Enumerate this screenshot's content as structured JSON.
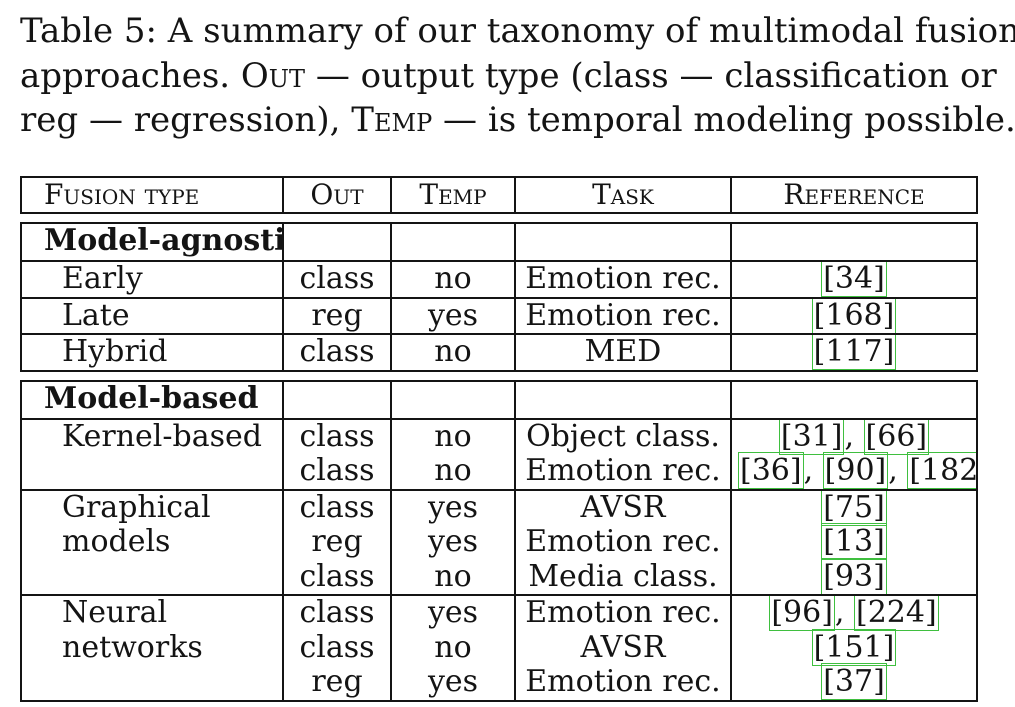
{
  "caption": {
    "label": "Table 5:",
    "text1": "A summary of our taxonomy of multimodal fusion",
    "text2a": "approaches.",
    "out_label": "Out",
    "text2b": "— output type (class — classification or",
    "text3a": "reg — regression),",
    "temp_label": "Temp",
    "text3b": "— is temporal modeling possible."
  },
  "table": {
    "headers": [
      "Fusion type",
      "Out",
      "Temp",
      "Task",
      "Reference"
    ],
    "groups": [
      {
        "name": "Model-agnostic",
        "rows": [
          {
            "type": "Early",
            "entries": [
              {
                "out": "class",
                "temp": "no",
                "task": "Emotion rec.",
                "refs": [
                  "34"
                ]
              }
            ]
          },
          {
            "type": "Late",
            "entries": [
              {
                "out": "reg",
                "temp": "yes",
                "task": "Emotion rec.",
                "refs": [
                  "168"
                ]
              }
            ]
          },
          {
            "type": "Hybrid",
            "entries": [
              {
                "out": "class",
                "temp": "no",
                "task": "MED",
                "refs": [
                  "117"
                ]
              }
            ]
          }
        ]
      },
      {
        "name": "Model-based",
        "rows": [
          {
            "type": "Kernel-based",
            "entries": [
              {
                "out": "class",
                "temp": "no",
                "task": "Object class.",
                "refs": [
                  "31",
                  "66"
                ]
              },
              {
                "out": "class",
                "temp": "no",
                "task": "Emotion rec.",
                "refs": [
                  "36",
                  "90",
                  "182"
                ]
              }
            ]
          },
          {
            "type": "Graphical\nmodels",
            "entries": [
              {
                "out": "class",
                "temp": "yes",
                "task": "AVSR",
                "refs": [
                  "75"
                ]
              },
              {
                "out": "reg",
                "temp": "yes",
                "task": "Emotion rec.",
                "refs": [
                  "13"
                ]
              },
              {
                "out": "class",
                "temp": "no",
                "task": "Media class.",
                "refs": [
                  "93"
                ]
              }
            ]
          },
          {
            "type": "Neural\nnetworks",
            "entries": [
              {
                "out": "class",
                "temp": "yes",
                "task": "Emotion rec.",
                "refs": [
                  "96",
                  "224"
                ]
              },
              {
                "out": "class",
                "temp": "no",
                "task": "AVSR",
                "refs": [
                  "151"
                ]
              },
              {
                "out": "reg",
                "temp": "yes",
                "task": "Emotion rec.",
                "refs": [
                  "37"
                ]
              }
            ]
          }
        ]
      }
    ]
  },
  "colors": {
    "link_box": "#3fbf3f",
    "text": "#141414"
  }
}
